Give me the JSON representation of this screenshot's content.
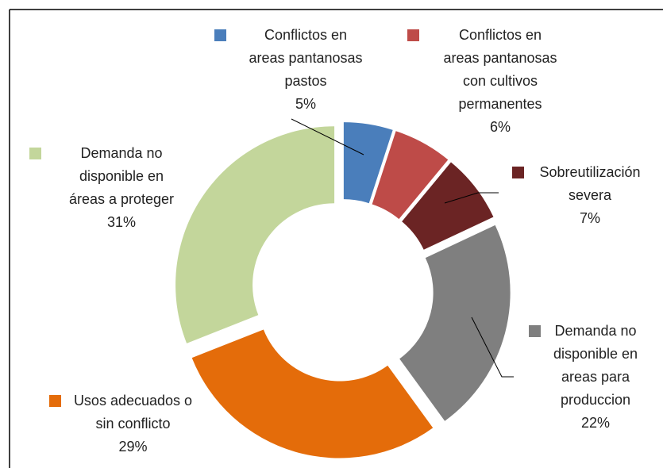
{
  "chart_data": {
    "type": "donut",
    "categories": [
      "Conflictos en areas pantanosas pastos",
      "Conflictos en areas pantanosas con cultivos permanentes",
      "Sobreutilización severa",
      "Demanda no disponible en areas para produccion",
      "Usos adecuados o sin conflicto",
      "Demanda no disponible en áreas a proteger"
    ],
    "values": [
      5,
      6,
      7,
      22,
      29,
      31
    ],
    "value_labels": [
      "5%",
      "6%",
      "7%",
      "22%",
      "29%",
      "31%"
    ],
    "colors": [
      "#4a7ebb",
      "#be4b48",
      "#6b2424",
      "#7f7f7f",
      "#e46c0a",
      "#c3d69b"
    ]
  }
}
